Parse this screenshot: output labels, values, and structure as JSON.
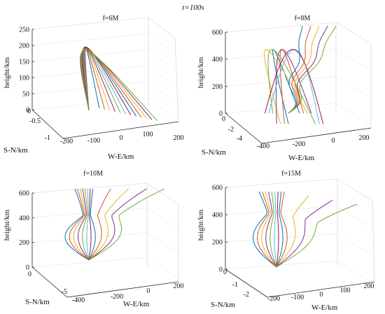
{
  "figure": {
    "title": "t=100s"
  },
  "colors": [
    "#0072BD",
    "#D95319",
    "#EDB120",
    "#7E2F8E",
    "#77AC30",
    "#4DBEEE",
    "#A2142F"
  ],
  "chart_data": [
    {
      "type": "line",
      "title": "f=6M",
      "xlabel": "W-E/km",
      "ylabel": "height/km",
      "zlabel": "S-N/km",
      "height_ticks": [
        "0",
        "50",
        "100",
        "150",
        "200",
        "250"
      ],
      "we_ticks": [
        "-200",
        "-100",
        "0",
        "100",
        "200"
      ],
      "sn_ticks": [
        "0",
        "-0.5",
        "-1"
      ],
      "height_range": [
        0,
        250
      ],
      "we_range": [
        -200,
        200
      ],
      "grid": true,
      "series_summary": "13 ray paths from source near W-E=-100 km, peaking near 210 km"
    },
    {
      "type": "line",
      "title": "f=8M",
      "xlabel": "W-E/km",
      "ylabel": "height/km",
      "zlabel": "S-N/km",
      "height_ticks": [
        "0",
        "200",
        "400",
        "600"
      ],
      "we_ticks": [
        "-400",
        "-200",
        "0",
        "200"
      ],
      "sn_ticks": [
        "0",
        "-2",
        "-4"
      ],
      "height_range": [
        0,
        600
      ],
      "we_range": [
        -400,
        200
      ],
      "grid": true
    },
    {
      "type": "line",
      "title": "f=10M",
      "xlabel": "W-E/km",
      "ylabel": "height/km",
      "zlabel": "S-N/km",
      "height_ticks": [
        "0",
        "200",
        "400",
        "600"
      ],
      "we_ticks": [
        "-400",
        "-200",
        "0",
        "200"
      ],
      "sn_ticks": [
        "0",
        "-5"
      ],
      "height_range": [
        0,
        600
      ],
      "we_range": [
        -400,
        200
      ],
      "grid": true
    },
    {
      "type": "line",
      "title": "f=15M",
      "xlabel": "W-E/km",
      "ylabel": "height/km",
      "zlabel": "S-N/km",
      "height_ticks": [
        "0",
        "200",
        "400",
        "600"
      ],
      "we_ticks": [
        "-200",
        "-100",
        "0",
        "100",
        "200"
      ],
      "sn_ticks": [
        "0",
        "-1",
        "-2"
      ],
      "height_range": [
        0,
        600
      ],
      "we_range": [
        -200,
        200
      ],
      "grid": true
    }
  ]
}
